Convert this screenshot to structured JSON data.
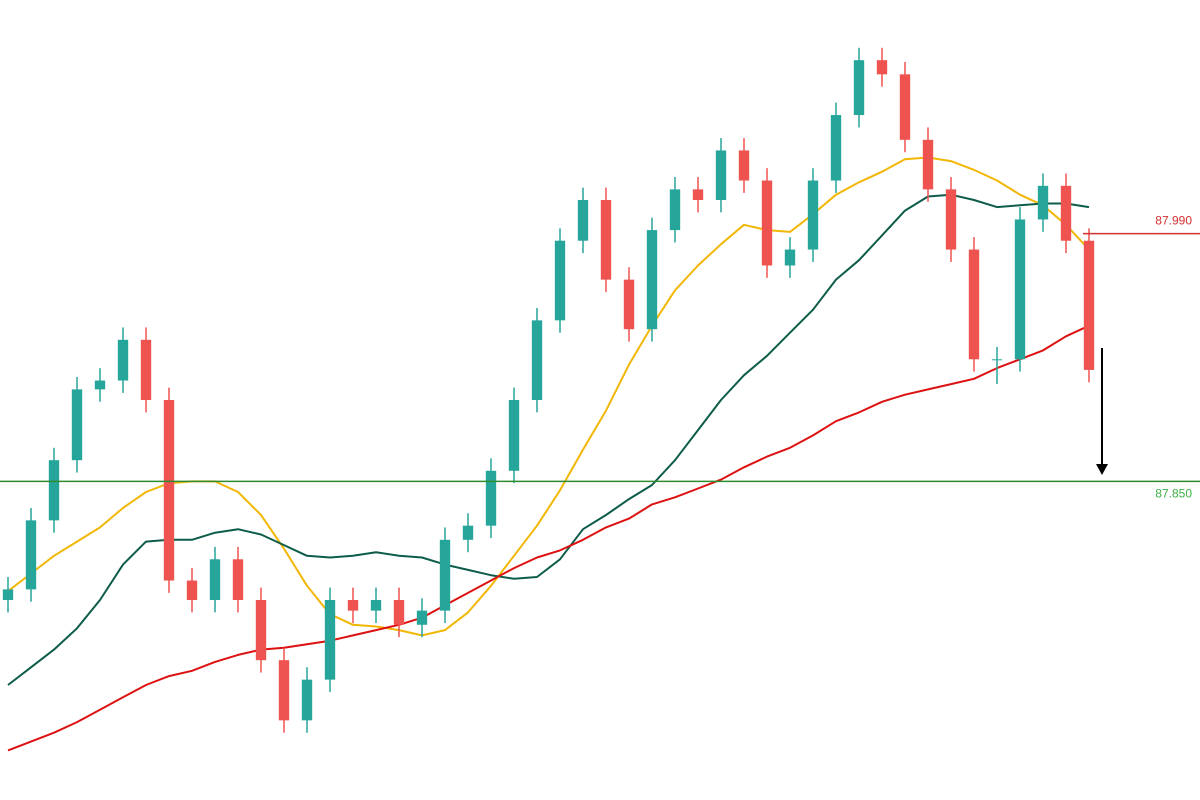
{
  "chart_data": {
    "type": "candlestick",
    "ylim": [
      87.67,
      88.122
    ],
    "up_color": "#26a69a",
    "down_color": "#ef5350",
    "open": [
      87.783,
      87.789,
      87.828,
      87.862,
      87.902,
      87.907,
      87.93,
      87.896,
      87.794,
      87.783,
      87.806,
      87.783,
      87.749,
      87.715,
      87.738,
      87.783,
      87.777,
      87.783,
      87.769,
      87.777,
      87.817,
      87.825,
      87.856,
      87.896,
      87.941,
      87.986,
      88.009,
      87.964,
      87.936,
      87.992,
      88.015,
      88.009,
      88.037,
      88.02,
      87.972,
      87.981,
      88.02,
      88.057,
      88.088,
      88.08,
      88.043,
      88.015,
      87.981,
      87.919,
      87.919,
      87.998,
      88.017,
      87.986
    ],
    "high": [
      87.796,
      87.835,
      87.869,
      87.909,
      87.914,
      87.937,
      87.937,
      87.903,
      87.801,
      87.813,
      87.813,
      87.79,
      87.756,
      87.745,
      87.79,
      87.79,
      87.79,
      87.79,
      87.784,
      87.824,
      87.832,
      87.863,
      87.903,
      87.948,
      87.993,
      88.016,
      88.016,
      87.971,
      87.999,
      88.022,
      88.022,
      88.044,
      88.044,
      88.027,
      87.988,
      88.027,
      88.064,
      88.095,
      88.095,
      88.087,
      88.05,
      88.022,
      87.988,
      87.926,
      88.005,
      88.024,
      88.024,
      87.993
    ],
    "low": [
      87.776,
      87.782,
      87.821,
      87.855,
      87.895,
      87.9,
      87.889,
      87.787,
      87.776,
      87.776,
      87.776,
      87.742,
      87.708,
      87.708,
      87.731,
      87.77,
      87.77,
      87.762,
      87.762,
      87.77,
      87.81,
      87.818,
      87.849,
      87.889,
      87.934,
      87.979,
      87.957,
      87.929,
      87.929,
      87.985,
      88.002,
      88.002,
      88.013,
      87.965,
      87.965,
      87.974,
      88.013,
      88.05,
      88.073,
      88.036,
      88.008,
      87.974,
      87.912,
      87.905,
      87.912,
      87.991,
      87.979,
      87.906
    ],
    "close": [
      87.789,
      87.828,
      87.862,
      87.902,
      87.907,
      87.93,
      87.896,
      87.794,
      87.783,
      87.806,
      87.783,
      87.749,
      87.715,
      87.738,
      87.783,
      87.777,
      87.783,
      87.769,
      87.777,
      87.817,
      87.825,
      87.856,
      87.896,
      87.941,
      87.986,
      88.009,
      87.964,
      87.936,
      87.992,
      88.015,
      88.009,
      88.037,
      88.02,
      87.972,
      87.981,
      88.02,
      88.057,
      88.088,
      88.08,
      88.043,
      88.015,
      87.981,
      87.919,
      87.919,
      87.998,
      88.017,
      87.986,
      87.913
    ],
    "series": [
      {
        "color": "#f2b705",
        "values": [
          87.788,
          87.798,
          87.808,
          87.816,
          87.824,
          87.835,
          87.844,
          87.849,
          87.85,
          87.85,
          87.844,
          87.831,
          87.812,
          87.791,
          87.775,
          87.769,
          87.768,
          87.766,
          87.763,
          87.766,
          87.776,
          87.791,
          87.808,
          87.825,
          87.845,
          87.868,
          87.89,
          87.916,
          87.938,
          87.958,
          87.972,
          87.984,
          87.995,
          87.992,
          87.991,
          88.001,
          88.012,
          88.019,
          88.025,
          88.032,
          88.033,
          88.031,
          88.026,
          88.02,
          88.012,
          88.006,
          87.995,
          87.981
        ]
      },
      {
        "color": "#0d5c4a",
        "values": [
          87.735,
          87.745,
          87.755,
          87.767,
          87.783,
          87.803,
          87.816,
          87.817,
          87.817,
          87.821,
          87.823,
          87.82,
          87.814,
          87.808,
          87.807,
          87.808,
          87.81,
          87.808,
          87.807,
          87.803,
          87.8,
          87.797,
          87.795,
          87.796,
          87.806,
          87.823,
          87.831,
          87.84,
          87.848,
          87.862,
          87.879,
          87.896,
          87.91,
          87.921,
          87.934,
          87.947,
          87.964,
          87.975,
          87.989,
          88.003,
          88.011,
          88.012,
          88.009,
          88.005,
          88.006,
          88.007,
          88.007,
          88.005
        ]
      },
      {
        "color": "#dd1111",
        "values": [
          87.698,
          87.703,
          87.708,
          87.714,
          87.721,
          87.728,
          87.735,
          87.74,
          87.743,
          87.748,
          87.752,
          87.755,
          87.756,
          87.758,
          87.76,
          87.763,
          87.766,
          87.769,
          87.773,
          87.78,
          87.787,
          87.794,
          87.801,
          87.807,
          87.811,
          87.817,
          87.824,
          87.829,
          87.837,
          87.841,
          87.846,
          87.851,
          87.858,
          87.864,
          87.869,
          87.876,
          87.884,
          87.889,
          87.895,
          87.899,
          87.902,
          87.905,
          87.908,
          87.914,
          87.919,
          87.924,
          87.932,
          87.938
        ]
      }
    ],
    "levels": [
      {
        "value": 87.99,
        "label": "87.990",
        "color": "#d32f2f",
        "extent": "last-bar"
      },
      {
        "value": 87.85,
        "label": "87.850",
        "color": "#2e8b2e",
        "label_color": "#3cb043",
        "extent": "full"
      }
    ]
  }
}
